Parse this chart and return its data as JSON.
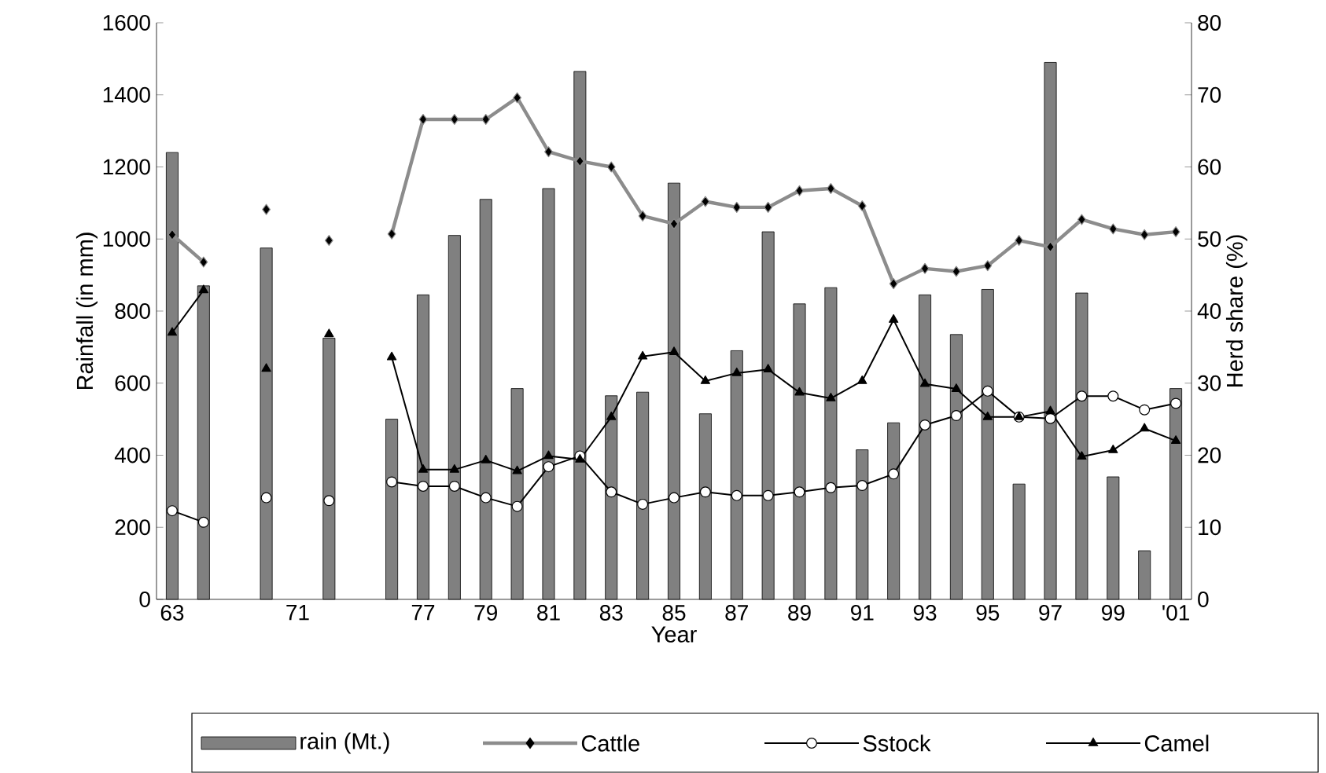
{
  "chart_data": {
    "type": "bar",
    "xlabel": "Year",
    "ylabel": "Rainfall (in mm)",
    "y2label": "Herd share (%)",
    "categories": [
      "63",
      null,
      null,
      null,
      "71",
      null,
      null,
      null,
      "77",
      null,
      "79",
      null,
      "81",
      null,
      "83",
      null,
      "85",
      null,
      "87",
      null,
      "89",
      null,
      "91",
      null,
      "93",
      null,
      "95",
      null,
      "97",
      null,
      "99",
      null,
      "'01"
    ],
    "series": [
      {
        "name": "rain (Mt.)",
        "color": "#808080",
        "values": [
          1240,
          870,
          null,
          975,
          null,
          725,
          null,
          500,
          845,
          1010,
          1110,
          585,
          1140,
          1465,
          565,
          575,
          1155,
          515,
          690,
          1020,
          820,
          865,
          415,
          490,
          845,
          735,
          860,
          320,
          1490,
          850,
          340,
          135,
          585
        ]
      },
      {
        "name": "Cattle",
        "type": "line",
        "axis": "y2",
        "marker": "diamond",
        "color": "#8c8c8c",
        "values": [
          50.6,
          46.8,
          null,
          54.1,
          null,
          49.8,
          null,
          50.7,
          66.6,
          66.6,
          66.6,
          69.6,
          62.1,
          60.8,
          60,
          53.2,
          52.1,
          55.2,
          54.4,
          54.4,
          56.7,
          57,
          54.6,
          43.8,
          45.9,
          45.5,
          46.3,
          49.8,
          48.9,
          52.7,
          51.4,
          50.6,
          51
        ]
      },
      {
        "name": "Sstock",
        "type": "line",
        "axis": "y2",
        "marker": "circle",
        "color": "#000000",
        "values": [
          12.3,
          10.7,
          null,
          14.1,
          null,
          13.7,
          null,
          16.3,
          15.7,
          15.7,
          14.1,
          12.9,
          18.4,
          19.9,
          14.9,
          13.2,
          14.1,
          14.9,
          14.4,
          14.4,
          14.9,
          15.5,
          15.8,
          17.4,
          24.2,
          25.5,
          28.9,
          25.3,
          25.1,
          28.2,
          28.2,
          26.3,
          27.2
        ]
      },
      {
        "name": "Camel",
        "type": "line",
        "axis": "y2",
        "marker": "triangle",
        "color": "#000000",
        "values": [
          37,
          42.9,
          null,
          32,
          null,
          36.8,
          null,
          33.6,
          18,
          18,
          19.3,
          17.8,
          19.9,
          19.4,
          25.3,
          33.7,
          34.3,
          30.3,
          31.4,
          31.9,
          28.7,
          27.9,
          30.3,
          38.8,
          29.9,
          29.2,
          25.3,
          25.3,
          26.1,
          19.8,
          20.7,
          23.7,
          22
        ]
      }
    ],
    "ylim": [
      0,
      1600
    ],
    "yticks": [
      0,
      200,
      400,
      600,
      800,
      1000,
      1200,
      1400,
      1600
    ],
    "y2lim": [
      0,
      80
    ],
    "y2ticks": [
      0,
      10,
      20,
      30,
      40,
      50,
      60,
      70,
      80
    ],
    "legend": "bottom",
    "line_style": "solid"
  }
}
